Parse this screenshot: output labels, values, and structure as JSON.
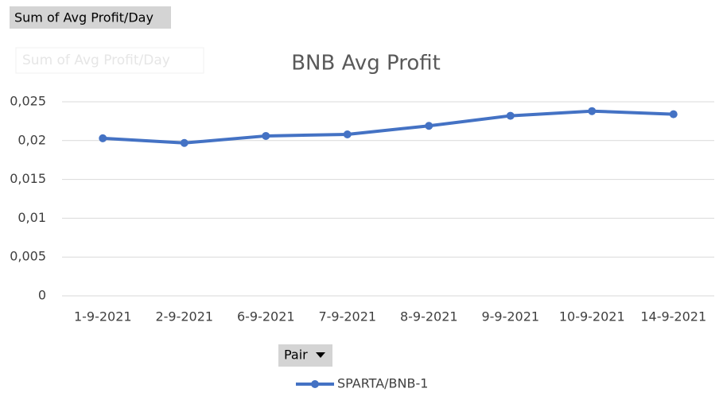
{
  "field_button": "Sum of Avg Profit/Day",
  "ghost_label": "Sum of Avg Profit/Day",
  "filter_button": "Pair",
  "chart_data": {
    "type": "line",
    "title": "BNB Avg Profit",
    "categories": [
      "1-9-2021",
      "2-9-2021",
      "6-9-2021",
      "7-9-2021",
      "8-9-2021",
      "9-9-2021",
      "10-9-2021",
      "14-9-2021"
    ],
    "series": [
      {
        "name": "SPARTA/BNB-1",
        "color": "#4472c4",
        "values": [
          0.0203,
          0.0197,
          0.0206,
          0.0208,
          0.0219,
          0.0232,
          0.0238,
          0.0234
        ]
      }
    ],
    "ylim": [
      0,
      0.025
    ],
    "yticks": [
      0,
      {
        "value": 0.005,
        "label": "0,005"
      },
      {
        "value": 0.01,
        "label": "0,01"
      },
      {
        "value": 0.015,
        "label": "0,015"
      },
      {
        "value": 0.02,
        "label": "0,02"
      },
      {
        "value": 0.025,
        "label": "0,025"
      }
    ],
    "grid": true,
    "legend": "bottom"
  }
}
